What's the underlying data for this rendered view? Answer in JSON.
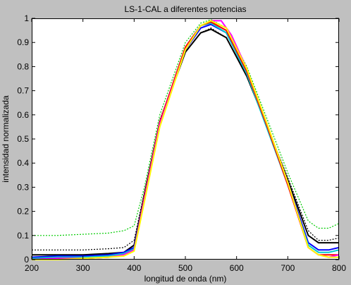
{
  "chart_data": {
    "type": "line",
    "title": "LS-1-CAL a diferentes potencias",
    "xlabel": "longitud de onda (nm)",
    "ylabel": "intensidad normalizada",
    "xlim": [
      200,
      800
    ],
    "ylim": [
      0,
      1
    ],
    "xticks": [
      200,
      300,
      400,
      500,
      600,
      700,
      800
    ],
    "yticks": [
      0,
      0.1,
      0.2,
      0.3,
      0.4,
      0.5,
      0.6,
      0.7,
      0.8,
      0.9,
      1
    ],
    "ytick_labels": [
      "0",
      "0.1",
      "0.2",
      "0.3",
      "0.4",
      "0.5",
      "0.6",
      "0.7",
      "0.8",
      "0.9",
      "1"
    ],
    "grid": false,
    "background": "#c0c0c0",
    "plot_background": "#ffffff",
    "series": [
      {
        "color": "#00cc00",
        "style": "dashed",
        "x": [
          200,
          250,
          300,
          350,
          380,
          400,
          420,
          450,
          500,
          530,
          550,
          580,
          620,
          660,
          700,
          740,
          760,
          780,
          800
        ],
        "y": [
          0.1,
          0.1,
          0.105,
          0.11,
          0.12,
          0.14,
          0.3,
          0.6,
          0.9,
          0.98,
          0.995,
          0.96,
          0.8,
          0.58,
          0.36,
          0.16,
          0.13,
          0.13,
          0.15
        ]
      },
      {
        "color": "#000000",
        "style": "dashed",
        "x": [
          200,
          250,
          300,
          350,
          380,
          400,
          420,
          450,
          500,
          530,
          550,
          580,
          620,
          660,
          700,
          740,
          760,
          780,
          800
        ],
        "y": [
          0.04,
          0.04,
          0.04,
          0.045,
          0.05,
          0.08,
          0.28,
          0.58,
          0.86,
          0.94,
          0.96,
          0.92,
          0.76,
          0.55,
          0.34,
          0.12,
          0.08,
          0.08,
          0.09
        ]
      },
      {
        "color": "#000000",
        "style": "solid",
        "x": [
          200,
          250,
          300,
          350,
          380,
          400,
          420,
          450,
          500,
          530,
          550,
          580,
          620,
          660,
          700,
          740,
          760,
          780,
          800
        ],
        "y": [
          0.02,
          0.02,
          0.02,
          0.025,
          0.03,
          0.06,
          0.27,
          0.57,
          0.86,
          0.94,
          0.955,
          0.92,
          0.76,
          0.55,
          0.33,
          0.1,
          0.07,
          0.07,
          0.07
        ]
      },
      {
        "color": "#0000ff",
        "style": "solid",
        "x": [
          200,
          250,
          300,
          350,
          380,
          400,
          420,
          450,
          500,
          530,
          550,
          580,
          620,
          660,
          700,
          740,
          760,
          780,
          800
        ],
        "y": [
          0.01,
          0.015,
          0.015,
          0.02,
          0.03,
          0.05,
          0.26,
          0.57,
          0.87,
          0.96,
          0.975,
          0.94,
          0.77,
          0.55,
          0.32,
          0.07,
          0.04,
          0.04,
          0.05
        ]
      },
      {
        "color": "#00cccc",
        "style": "solid",
        "x": [
          200,
          250,
          300,
          350,
          380,
          400,
          420,
          450,
          500,
          530,
          550,
          580,
          620,
          660,
          700,
          740,
          760,
          780,
          800
        ],
        "y": [
          0.005,
          0.01,
          0.01,
          0.015,
          0.025,
          0.045,
          0.26,
          0.57,
          0.88,
          0.97,
          0.98,
          0.94,
          0.77,
          0.54,
          0.31,
          0.06,
          0.03,
          0.03,
          0.04
        ]
      },
      {
        "color": "#ff0000",
        "style": "solid",
        "x": [
          200,
          250,
          300,
          350,
          380,
          400,
          420,
          450,
          500,
          530,
          550,
          580,
          620,
          660,
          700,
          740,
          760,
          780,
          800
        ],
        "y": [
          0.0,
          0.005,
          0.005,
          0.01,
          0.02,
          0.04,
          0.26,
          0.57,
          0.88,
          0.97,
          0.985,
          0.95,
          0.78,
          0.55,
          0.31,
          0.05,
          0.02,
          0.02,
          0.02
        ]
      },
      {
        "color": "#ff00ff",
        "style": "solid",
        "x": [
          200,
          250,
          300,
          350,
          380,
          400,
          420,
          450,
          500,
          530,
          550,
          570,
          590,
          620,
          660,
          700,
          740,
          760,
          780,
          800
        ],
        "y": [
          0.0,
          0.005,
          0.005,
          0.01,
          0.02,
          0.04,
          0.25,
          0.56,
          0.87,
          0.97,
          0.99,
          0.99,
          0.93,
          0.79,
          0.56,
          0.32,
          0.05,
          0.02,
          0.01,
          0.02
        ]
      },
      {
        "color": "#ffff00",
        "style": "solid",
        "x": [
          200,
          250,
          300,
          350,
          380,
          400,
          420,
          450,
          500,
          530,
          550,
          580,
          620,
          660,
          700,
          740,
          760,
          780,
          800
        ],
        "y": [
          0.0,
          0.0,
          0.005,
          0.01,
          0.015,
          0.035,
          0.24,
          0.55,
          0.87,
          0.97,
          0.99,
          0.96,
          0.79,
          0.56,
          0.32,
          0.05,
          0.02,
          0.01,
          0.01
        ]
      }
    ]
  }
}
